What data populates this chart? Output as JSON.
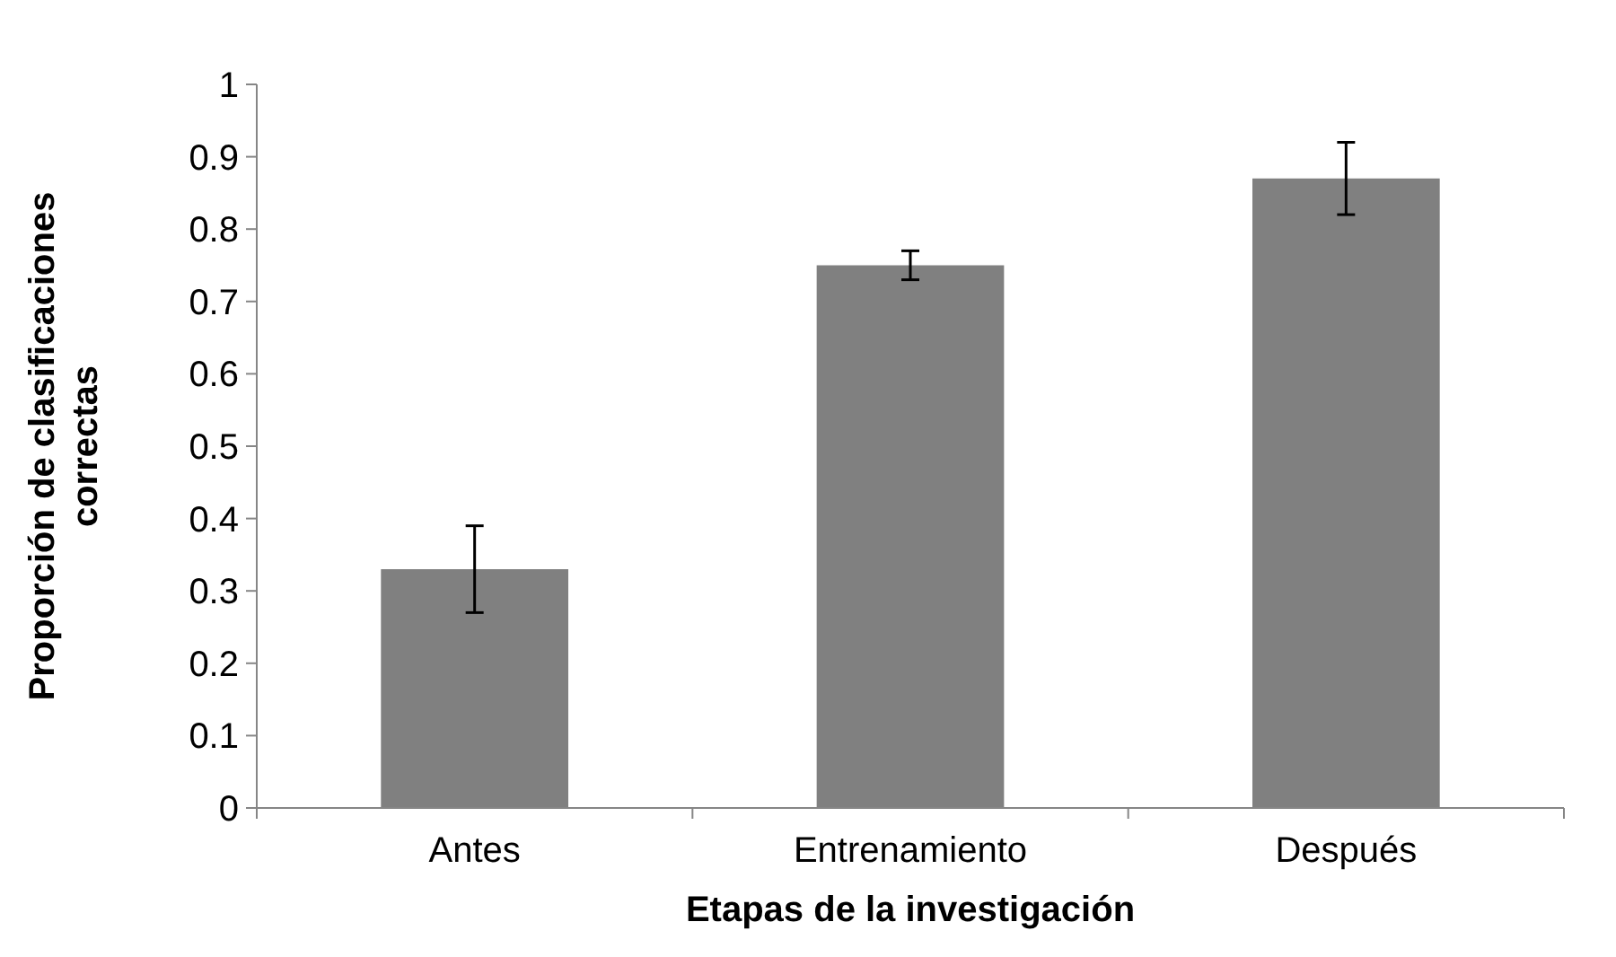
{
  "chart_data": {
    "type": "bar",
    "xlabel": "Etapas de la investigación",
    "ylabel": "Proporción de clasificaciones\ncorrectas",
    "categories": [
      "Antes",
      "Entrenamiento",
      "Después"
    ],
    "values": [
      0.33,
      0.75,
      0.87
    ],
    "errors": [
      0.06,
      0.02,
      0.05
    ],
    "color": "#808080",
    "ylim": [
      0,
      1
    ],
    "yticks": [
      0,
      0.1,
      0.2,
      0.3,
      0.4,
      0.5,
      0.6,
      0.7,
      0.8,
      0.9,
      1
    ],
    "grid": false
  }
}
